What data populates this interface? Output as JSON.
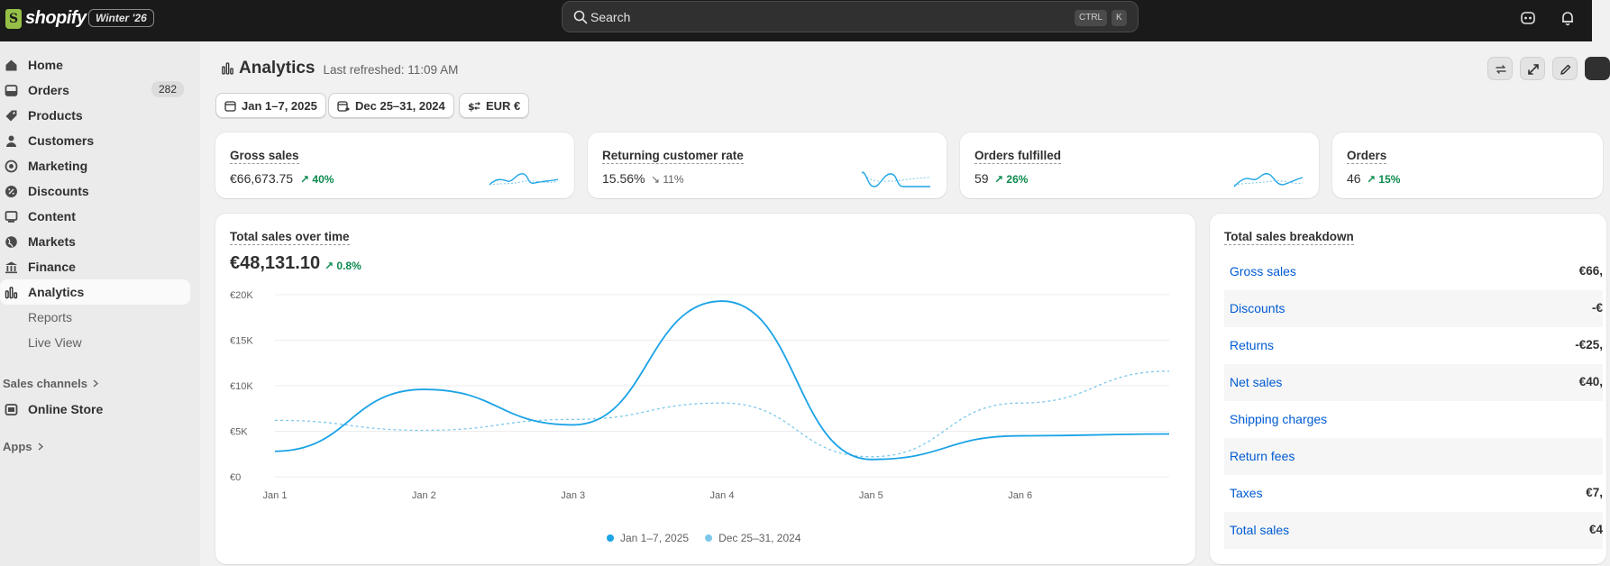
{
  "topbar": {
    "logo_text": "shopify",
    "edition": "Winter '26",
    "search_placeholder": "Search",
    "shortcut_ctrl": "CTRL",
    "shortcut_k": "K"
  },
  "sidebar": {
    "items": [
      {
        "label": "Home",
        "icon": "home-icon"
      },
      {
        "label": "Orders",
        "icon": "orders-icon",
        "badge": "282"
      },
      {
        "label": "Products",
        "icon": "tag-icon"
      },
      {
        "label": "Customers",
        "icon": "person-icon"
      },
      {
        "label": "Marketing",
        "icon": "target-icon"
      },
      {
        "label": "Discounts",
        "icon": "discount-icon"
      },
      {
        "label": "Content",
        "icon": "content-icon"
      },
      {
        "label": "Markets",
        "icon": "globe-icon"
      },
      {
        "label": "Finance",
        "icon": "bank-icon"
      },
      {
        "label": "Analytics",
        "icon": "bar-chart-icon",
        "active": true
      }
    ],
    "sub_items": [
      "Reports",
      "Live View"
    ],
    "sales_channels_label": "Sales channels",
    "online_store_label": "Online Store",
    "apps_label": "Apps"
  },
  "page": {
    "title": "Analytics",
    "last_refreshed": "Last refreshed: 11:09 AM"
  },
  "filters": {
    "date_range": "Jan 1–7, 2025",
    "compare_range": "Dec 25–31, 2024",
    "currency": "EUR €"
  },
  "metrics": [
    {
      "title": "Gross sales",
      "value": "€66,673.75",
      "change": "40%",
      "direction": "up"
    },
    {
      "title": "Returning customer rate",
      "value": "15.56%",
      "change": "11%",
      "direction": "down"
    },
    {
      "title": "Orders fulfilled",
      "value": "59",
      "change": "26%",
      "direction": "up"
    },
    {
      "title": "Orders",
      "value": "46",
      "change": "15%",
      "direction": "up"
    }
  ],
  "sales_chart": {
    "title": "Total sales over time",
    "total": "€48,131.10",
    "change": "0.8%"
  },
  "chart_data": {
    "type": "line",
    "title": "Total sales over time",
    "x": [
      "Jan 1",
      "Jan 2",
      "Jan 3",
      "Jan 4",
      "Jan 5",
      "Jan 6",
      "Jan 7"
    ],
    "x_tick_labels": [
      "Jan 1",
      "Jan 2",
      "Jan 3",
      "Jan 4",
      "Jan 5",
      "Jan 6"
    ],
    "y_tick_labels": [
      "€0",
      "€5K",
      "€10K",
      "€15K",
      "€20K"
    ],
    "y_ticks": [
      0,
      5000,
      10000,
      15000,
      20000
    ],
    "ylim": [
      0,
      20000
    ],
    "grid": true,
    "legend_position": "bottom-center",
    "series": [
      {
        "name": "Jan 1–7, 2025",
        "style": "solid",
        "color": "#1ba3e6",
        "values": [
          2800,
          9600,
          5700,
          19300,
          1900,
          4500,
          4700
        ]
      },
      {
        "name": "Dec 25–31, 2024",
        "style": "dashed",
        "color": "#7cc8ea",
        "values": [
          6200,
          5100,
          6300,
          8100,
          2200,
          8100,
          11600
        ]
      }
    ]
  },
  "breakdown": {
    "title": "Total sales breakdown",
    "rows": [
      {
        "label": "Gross sales",
        "value": "€66,"
      },
      {
        "label": "Discounts",
        "value": "-€"
      },
      {
        "label": "Returns",
        "value": "-€25,"
      },
      {
        "label": "Net sales",
        "value": "€40,"
      },
      {
        "label": "Shipping charges",
        "value": ""
      },
      {
        "label": "Return fees",
        "value": ""
      },
      {
        "label": "Taxes",
        "value": "€7,"
      },
      {
        "label": "Total sales",
        "value": "€4"
      }
    ]
  }
}
